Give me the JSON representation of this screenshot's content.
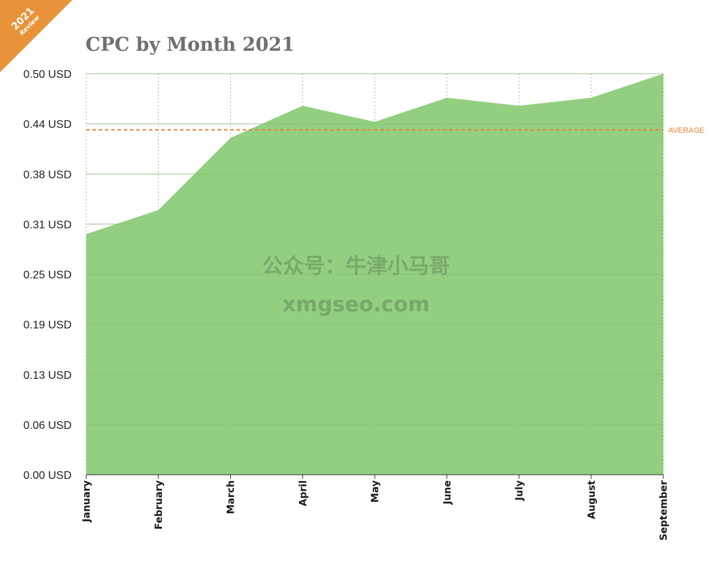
{
  "badge": {
    "year": "2021",
    "label": "Review",
    "color": "#e8923a"
  },
  "watermark": {
    "line1": "公众号：牛津小马哥",
    "line2": "xmgseo.com"
  },
  "chart_data": {
    "type": "area",
    "title": "CPC by Month 2021",
    "xlabel": "",
    "ylabel": "",
    "categories": [
      "January",
      "February",
      "March",
      "April",
      "May",
      "June",
      "July",
      "August",
      "September"
    ],
    "series": [
      {
        "values": [
          0.3,
          0.33,
          0.42,
          0.46,
          0.44,
          0.47,
          0.46,
          0.47,
          0.5
        ],
        "color": "#93cf80"
      }
    ],
    "ylim": [
      0,
      0.5
    ],
    "yticks": [
      0,
      0.0625,
      0.125,
      0.1875,
      0.25,
      0.3125,
      0.375,
      0.4375,
      0.5
    ],
    "ytick_labels": [
      "0.00 USD",
      "0.06 USD",
      "0.13 USD",
      "0.19 USD",
      "0.25 USD",
      "0.31 USD",
      "0.38 USD",
      "0.44 USD",
      "0.50 USD"
    ],
    "average": {
      "value": 0.43,
      "label": "AVERAGE",
      "color": "#e8823a"
    },
    "grid": true
  }
}
